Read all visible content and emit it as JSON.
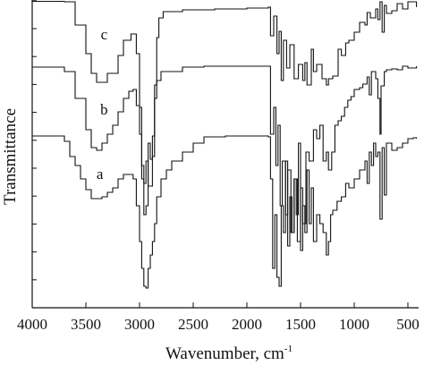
{
  "chart_data": {
    "type": "line",
    "title": "",
    "xlabel": "Wavenumber, cm",
    "xlabel_superscript": "-1",
    "ylabel": "Transmittance",
    "xlim": [
      4000,
      400
    ],
    "x_reversed": true,
    "x_ticks": [
      4000,
      3500,
      3000,
      2500,
      2000,
      1500,
      1000,
      500
    ],
    "x_tick_labels": [
      "4000",
      "3500",
      "3000",
      "2500",
      "2000",
      "1500",
      "1000",
      "500"
    ],
    "y_tick_labels_shown": false,
    "grid": false,
    "legend": "none",
    "line_color": "#111111",
    "series": [
      {
        "name": "c",
        "points": [
          [
            4000,
            1.5
          ],
          [
            3800,
            1.5
          ],
          [
            3700,
            2
          ],
          [
            3600,
            28
          ],
          [
            3500,
            60
          ],
          [
            3450,
            82
          ],
          [
            3400,
            92
          ],
          [
            3300,
            82
          ],
          [
            3200,
            62
          ],
          [
            3150,
            45
          ],
          [
            3080,
            38
          ],
          [
            3030,
            60
          ],
          [
            3000,
            120
          ],
          [
            2980,
            185
          ],
          [
            2960,
            205
          ],
          [
            2940,
            180
          ],
          [
            2920,
            208
          ],
          [
            2880,
            175
          ],
          [
            2860,
            95
          ],
          [
            2840,
            42
          ],
          [
            2820,
            20
          ],
          [
            2780,
            13
          ],
          [
            2600,
            11
          ],
          [
            2300,
            10
          ],
          [
            2000,
            9
          ],
          [
            1800,
            8
          ],
          [
            1780,
            40
          ],
          [
            1750,
            18
          ],
          [
            1720,
            60
          ],
          [
            1700,
            35
          ],
          [
            1680,
            90
          ],
          [
            1660,
            45
          ],
          [
            1630,
            76
          ],
          [
            1600,
            50
          ],
          [
            1560,
            88
          ],
          [
            1520,
            72
          ],
          [
            1480,
            90
          ],
          [
            1460,
            70
          ],
          [
            1440,
            95
          ],
          [
            1400,
            55
          ],
          [
            1380,
            80
          ],
          [
            1350,
            72
          ],
          [
            1300,
            88
          ],
          [
            1260,
            95
          ],
          [
            1240,
            88
          ],
          [
            1200,
            85
          ],
          [
            1150,
            55
          ],
          [
            1120,
            62
          ],
          [
            1080,
            48
          ],
          [
            1050,
            45
          ],
          [
            1000,
            36
          ],
          [
            950,
            25
          ],
          [
            900,
            28
          ],
          [
            880,
            14
          ],
          [
            850,
            20
          ],
          [
            800,
            10
          ],
          [
            780,
            22
          ],
          [
            760,
            2
          ],
          [
            740,
            36
          ],
          [
            720,
            6
          ],
          [
            700,
            15
          ],
          [
            650,
            12
          ],
          [
            600,
            4
          ],
          [
            550,
            10
          ],
          [
            500,
            2
          ],
          [
            450,
            2
          ],
          [
            420,
            8
          ]
        ]
      },
      {
        "name": "b",
        "points": [
          [
            4000,
            75
          ],
          [
            3800,
            75
          ],
          [
            3700,
            80
          ],
          [
            3600,
            110
          ],
          [
            3500,
            145
          ],
          [
            3450,
            165
          ],
          [
            3400,
            168
          ],
          [
            3350,
            160
          ],
          [
            3300,
            150
          ],
          [
            3250,
            140
          ],
          [
            3200,
            125
          ],
          [
            3150,
            110
          ],
          [
            3100,
            102
          ],
          [
            3060,
            100
          ],
          [
            3030,
            118
          ],
          [
            3000,
            150
          ],
          [
            2980,
            200
          ],
          [
            2960,
            240
          ],
          [
            2940,
            230
          ],
          [
            2920,
            160
          ],
          [
            2900,
            178
          ],
          [
            2880,
            152
          ],
          [
            2860,
            110
          ],
          [
            2840,
            90
          ],
          [
            2800,
            80
          ],
          [
            2600,
            75
          ],
          [
            2400,
            74
          ],
          [
            2000,
            74
          ],
          [
            1800,
            74
          ],
          [
            1780,
            150
          ],
          [
            1750,
            120
          ],
          [
            1730,
            185
          ],
          [
            1710,
            140
          ],
          [
            1690,
            230
          ],
          [
            1670,
            180
          ],
          [
            1640,
            240
          ],
          [
            1620,
            190
          ],
          [
            1590,
            260
          ],
          [
            1560,
            200
          ],
          [
            1530,
            270
          ],
          [
            1500,
            210
          ],
          [
            1480,
            250
          ],
          [
            1450,
            170
          ],
          [
            1420,
            180
          ],
          [
            1380,
            145
          ],
          [
            1350,
            155
          ],
          [
            1320,
            140
          ],
          [
            1290,
            180
          ],
          [
            1260,
            170
          ],
          [
            1240,
            190
          ],
          [
            1210,
            170
          ],
          [
            1180,
            140
          ],
          [
            1150,
            135
          ],
          [
            1120,
            130
          ],
          [
            1090,
            120
          ],
          [
            1060,
            112
          ],
          [
            1030,
            108
          ],
          [
            1000,
            100
          ],
          [
            950,
            98
          ],
          [
            920,
            94
          ],
          [
            880,
            86
          ],
          [
            860,
            106
          ],
          [
            840,
            80
          ],
          [
            800,
            88
          ],
          [
            780,
            110
          ],
          [
            760,
            150
          ],
          [
            750,
            96
          ],
          [
            720,
            80
          ],
          [
            700,
            78
          ],
          [
            650,
            77
          ],
          [
            600,
            78
          ],
          [
            550,
            74
          ],
          [
            500,
            76
          ],
          [
            450,
            76
          ],
          [
            420,
            74
          ]
        ]
      },
      {
        "name": "a",
        "points": [
          [
            4000,
            152
          ],
          [
            3800,
            152
          ],
          [
            3700,
            158
          ],
          [
            3650,
            175
          ],
          [
            3600,
            185
          ],
          [
            3550,
            200
          ],
          [
            3500,
            212
          ],
          [
            3450,
            222
          ],
          [
            3400,
            222
          ],
          [
            3350,
            220
          ],
          [
            3300,
            215
          ],
          [
            3250,
            210
          ],
          [
            3200,
            200
          ],
          [
            3150,
            195
          ],
          [
            3100,
            195
          ],
          [
            3060,
            200
          ],
          [
            3030,
            230
          ],
          [
            3000,
            270
          ],
          [
            2980,
            300
          ],
          [
            2960,
            320
          ],
          [
            2940,
            322
          ],
          [
            2920,
            300
          ],
          [
            2900,
            285
          ],
          [
            2880,
            270
          ],
          [
            2860,
            250
          ],
          [
            2840,
            220
          ],
          [
            2800,
            200
          ],
          [
            2750,
            190
          ],
          [
            2700,
            180
          ],
          [
            2600,
            170
          ],
          [
            2500,
            160
          ],
          [
            2400,
            153
          ],
          [
            2200,
            152
          ],
          [
            2000,
            152
          ],
          [
            1850,
            152
          ],
          [
            1800,
            153
          ],
          [
            1780,
            200
          ],
          [
            1760,
            300
          ],
          [
            1740,
            240
          ],
          [
            1720,
            310
          ],
          [
            1700,
            320
          ],
          [
            1680,
            230
          ],
          [
            1660,
            260
          ],
          [
            1640,
            180
          ],
          [
            1620,
            275
          ],
          [
            1600,
            220
          ],
          [
            1580,
            260
          ],
          [
            1560,
            200
          ],
          [
            1540,
            240
          ],
          [
            1520,
            160
          ],
          [
            1500,
            280
          ],
          [
            1480,
            230
          ],
          [
            1460,
            260
          ],
          [
            1440,
            190
          ],
          [
            1420,
            250
          ],
          [
            1400,
            210
          ],
          [
            1380,
            270
          ],
          [
            1350,
            240
          ],
          [
            1320,
            250
          ],
          [
            1290,
            260
          ],
          [
            1260,
            285
          ],
          [
            1240,
            270
          ],
          [
            1220,
            240
          ],
          [
            1200,
            235
          ],
          [
            1160,
            225
          ],
          [
            1120,
            220
          ],
          [
            1080,
            205
          ],
          [
            1050,
            210
          ],
          [
            1000,
            200
          ],
          [
            950,
            190
          ],
          [
            900,
            180
          ],
          [
            880,
            205
          ],
          [
            860,
            170
          ],
          [
            840,
            185
          ],
          [
            820,
            160
          ],
          [
            800,
            175
          ],
          [
            780,
            170
          ],
          [
            760,
            245
          ],
          [
            740,
            165
          ],
          [
            720,
            218
          ],
          [
            700,
            160
          ],
          [
            650,
            168
          ],
          [
            600,
            165
          ],
          [
            550,
            160
          ],
          [
            500,
            155
          ],
          [
            450,
            154
          ],
          [
            420,
            155
          ]
        ]
      }
    ],
    "annotations": [
      {
        "text": "c",
        "series": "c"
      },
      {
        "text": "b",
        "series": "b"
      },
      {
        "text": "a",
        "series": "a"
      }
    ]
  }
}
